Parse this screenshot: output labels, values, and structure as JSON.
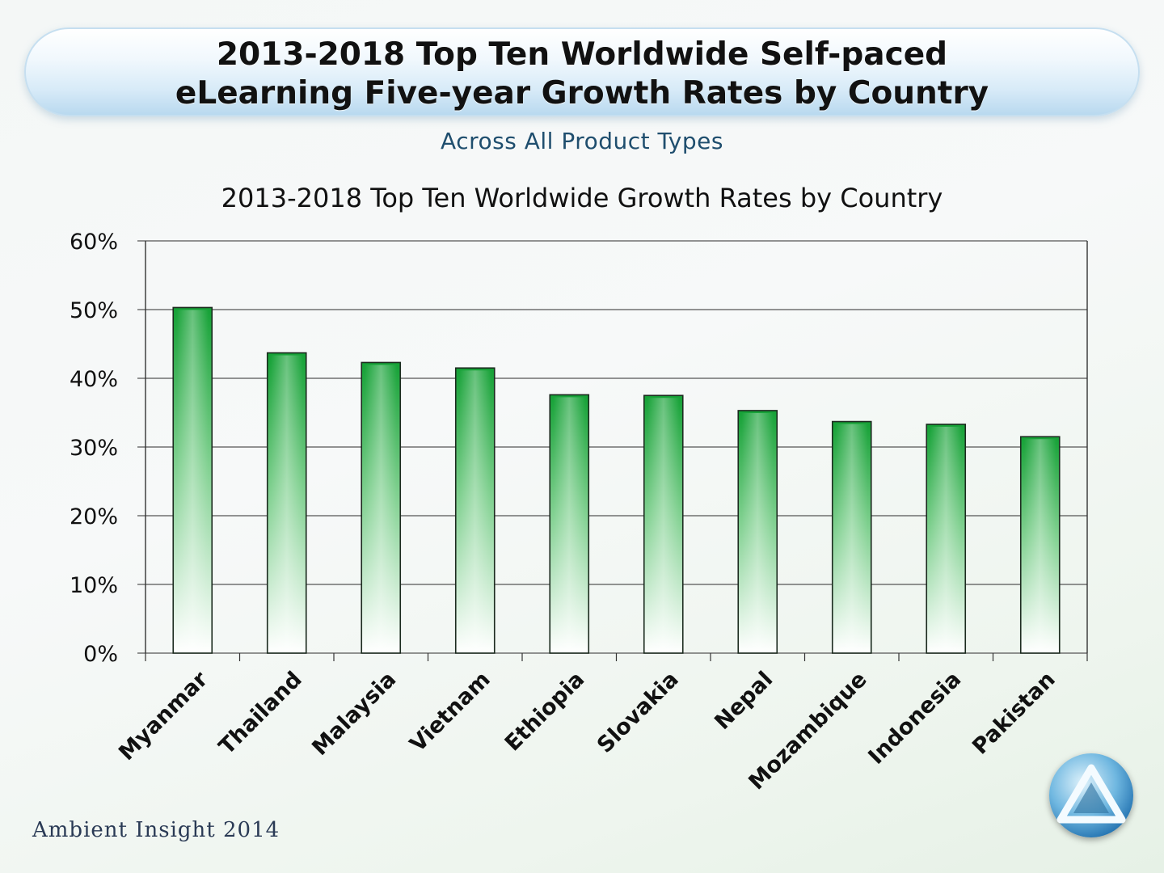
{
  "header": {
    "title": "2013-2018 Top Ten Worldwide Self-paced\neLearning Five-year Growth Rates by Country"
  },
  "subtitle": "Across  All  Product Types",
  "footer": "Ambient Insight 2014",
  "logo": {
    "icon": "triangle-logo-icon"
  },
  "colors": {
    "bar": "#1aa33a",
    "bar_light": "#ffffff",
    "grid": "#555555"
  },
  "chart_data": {
    "type": "bar",
    "title": "2013-2018  Top Ten Worldwide Growth Rates by Country",
    "xlabel": "",
    "ylabel": "",
    "categories": [
      "Myanmar",
      "Thailand",
      "Malaysia",
      "Vietnam",
      "Ethiopia",
      "Slovakia",
      "Nepal",
      "Mozambique",
      "Indonesia",
      "Pakistan"
    ],
    "values": [
      50.3,
      43.7,
      42.3,
      41.5,
      37.6,
      37.5,
      35.3,
      33.7,
      33.3,
      31.5
    ],
    "ylim": [
      0,
      60
    ],
    "yticks": [
      0,
      10,
      20,
      30,
      40,
      50,
      60
    ],
    "ytick_labels": [
      "0%",
      "10%",
      "20%",
      "30%",
      "40%",
      "50%",
      "60%"
    ],
    "grid": true,
    "legend": "none"
  }
}
